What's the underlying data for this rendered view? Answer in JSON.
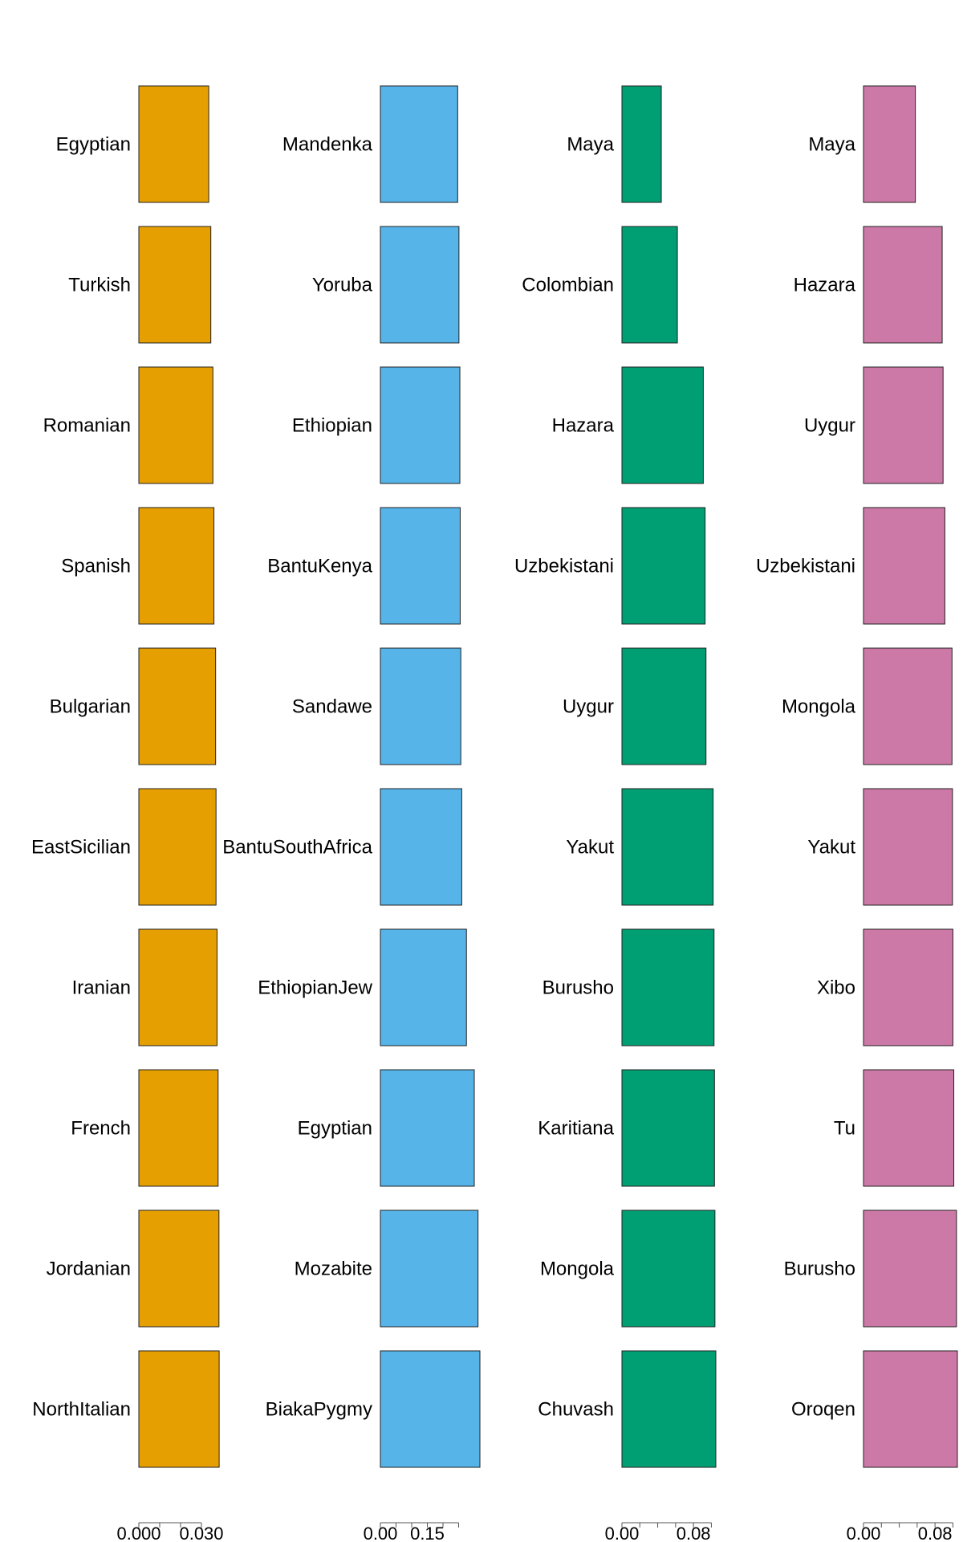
{
  "chart_data": [
    {
      "type": "bar",
      "orientation": "horizontal",
      "color": "#E69F00",
      "categories": [
        "Egyptian",
        "Turkish",
        "Romanian",
        "Spanish",
        "Bulgarian",
        "EastSicilian",
        "Iranian",
        "French",
        "Jordanian",
        "NorthItalian"
      ],
      "values": [
        0.0335,
        0.0345,
        0.0355,
        0.036,
        0.0368,
        0.037,
        0.0375,
        0.038,
        0.0384,
        0.0385
      ],
      "xlim": [
        0,
        0.045
      ],
      "xticks": [
        0.0,
        0.01,
        0.02,
        0.03
      ],
      "xtick_labels": [
        "0.000",
        "",
        "",
        "0.030"
      ],
      "grid": false
    },
    {
      "type": "bar",
      "orientation": "horizontal",
      "color": "#56B4E9",
      "categories": [
        "Mandenka",
        "Yoruba",
        "Ethiopian",
        "BantuKenya",
        "Sandawe",
        "BantuSouthAfrica",
        "EthiopianJew",
        "Egyptian",
        "Mozabite",
        "BiakaPygmy"
      ],
      "values": [
        0.247,
        0.251,
        0.254,
        0.255,
        0.257,
        0.26,
        0.275,
        0.3,
        0.312,
        0.318
      ],
      "xlim": [
        0,
        0.3
      ],
      "xticks": [
        0.0,
        0.05,
        0.1,
        0.15,
        0.2,
        0.25
      ],
      "xtick_labels": [
        "0.00",
        "",
        "",
        "0.15",
        "",
        ""
      ],
      "grid": false
    },
    {
      "type": "bar",
      "orientation": "horizontal",
      "color": "#009E73",
      "categories": [
        "Maya",
        "Colombian",
        "Hazara",
        "Uzbekistani",
        "Uygur",
        "Yakut",
        "Burusho",
        "Karitiana",
        "Mongola",
        "Chuvash"
      ],
      "values": [
        0.044,
        0.062,
        0.091,
        0.093,
        0.094,
        0.102,
        0.103,
        0.1035,
        0.104,
        0.105
      ],
      "xlim": [
        0,
        0.105
      ],
      "xticks": [
        0.0,
        0.02,
        0.04,
        0.06,
        0.08,
        0.1
      ],
      "xtick_labels": [
        "0.00",
        "",
        "",
        "",
        "0.08",
        ""
      ],
      "grid": false
    },
    {
      "type": "bar",
      "orientation": "horizontal",
      "color": "#CC79A7",
      "categories": [
        "Maya",
        "Hazara",
        "Uygur",
        "Uzbekistani",
        "Mongola",
        "Yakut",
        "Xibo",
        "Tu",
        "Burusho",
        "Oroqen"
      ],
      "values": [
        0.058,
        0.088,
        0.089,
        0.091,
        0.099,
        0.0995,
        0.1,
        0.101,
        0.104,
        0.105
      ],
      "xlim": [
        0,
        0.105
      ],
      "xticks": [
        0.0,
        0.02,
        0.04,
        0.06,
        0.08,
        0.1
      ],
      "xtick_labels": [
        "0.00",
        "",
        "",
        "",
        "0.08",
        ""
      ],
      "grid": false
    }
  ]
}
